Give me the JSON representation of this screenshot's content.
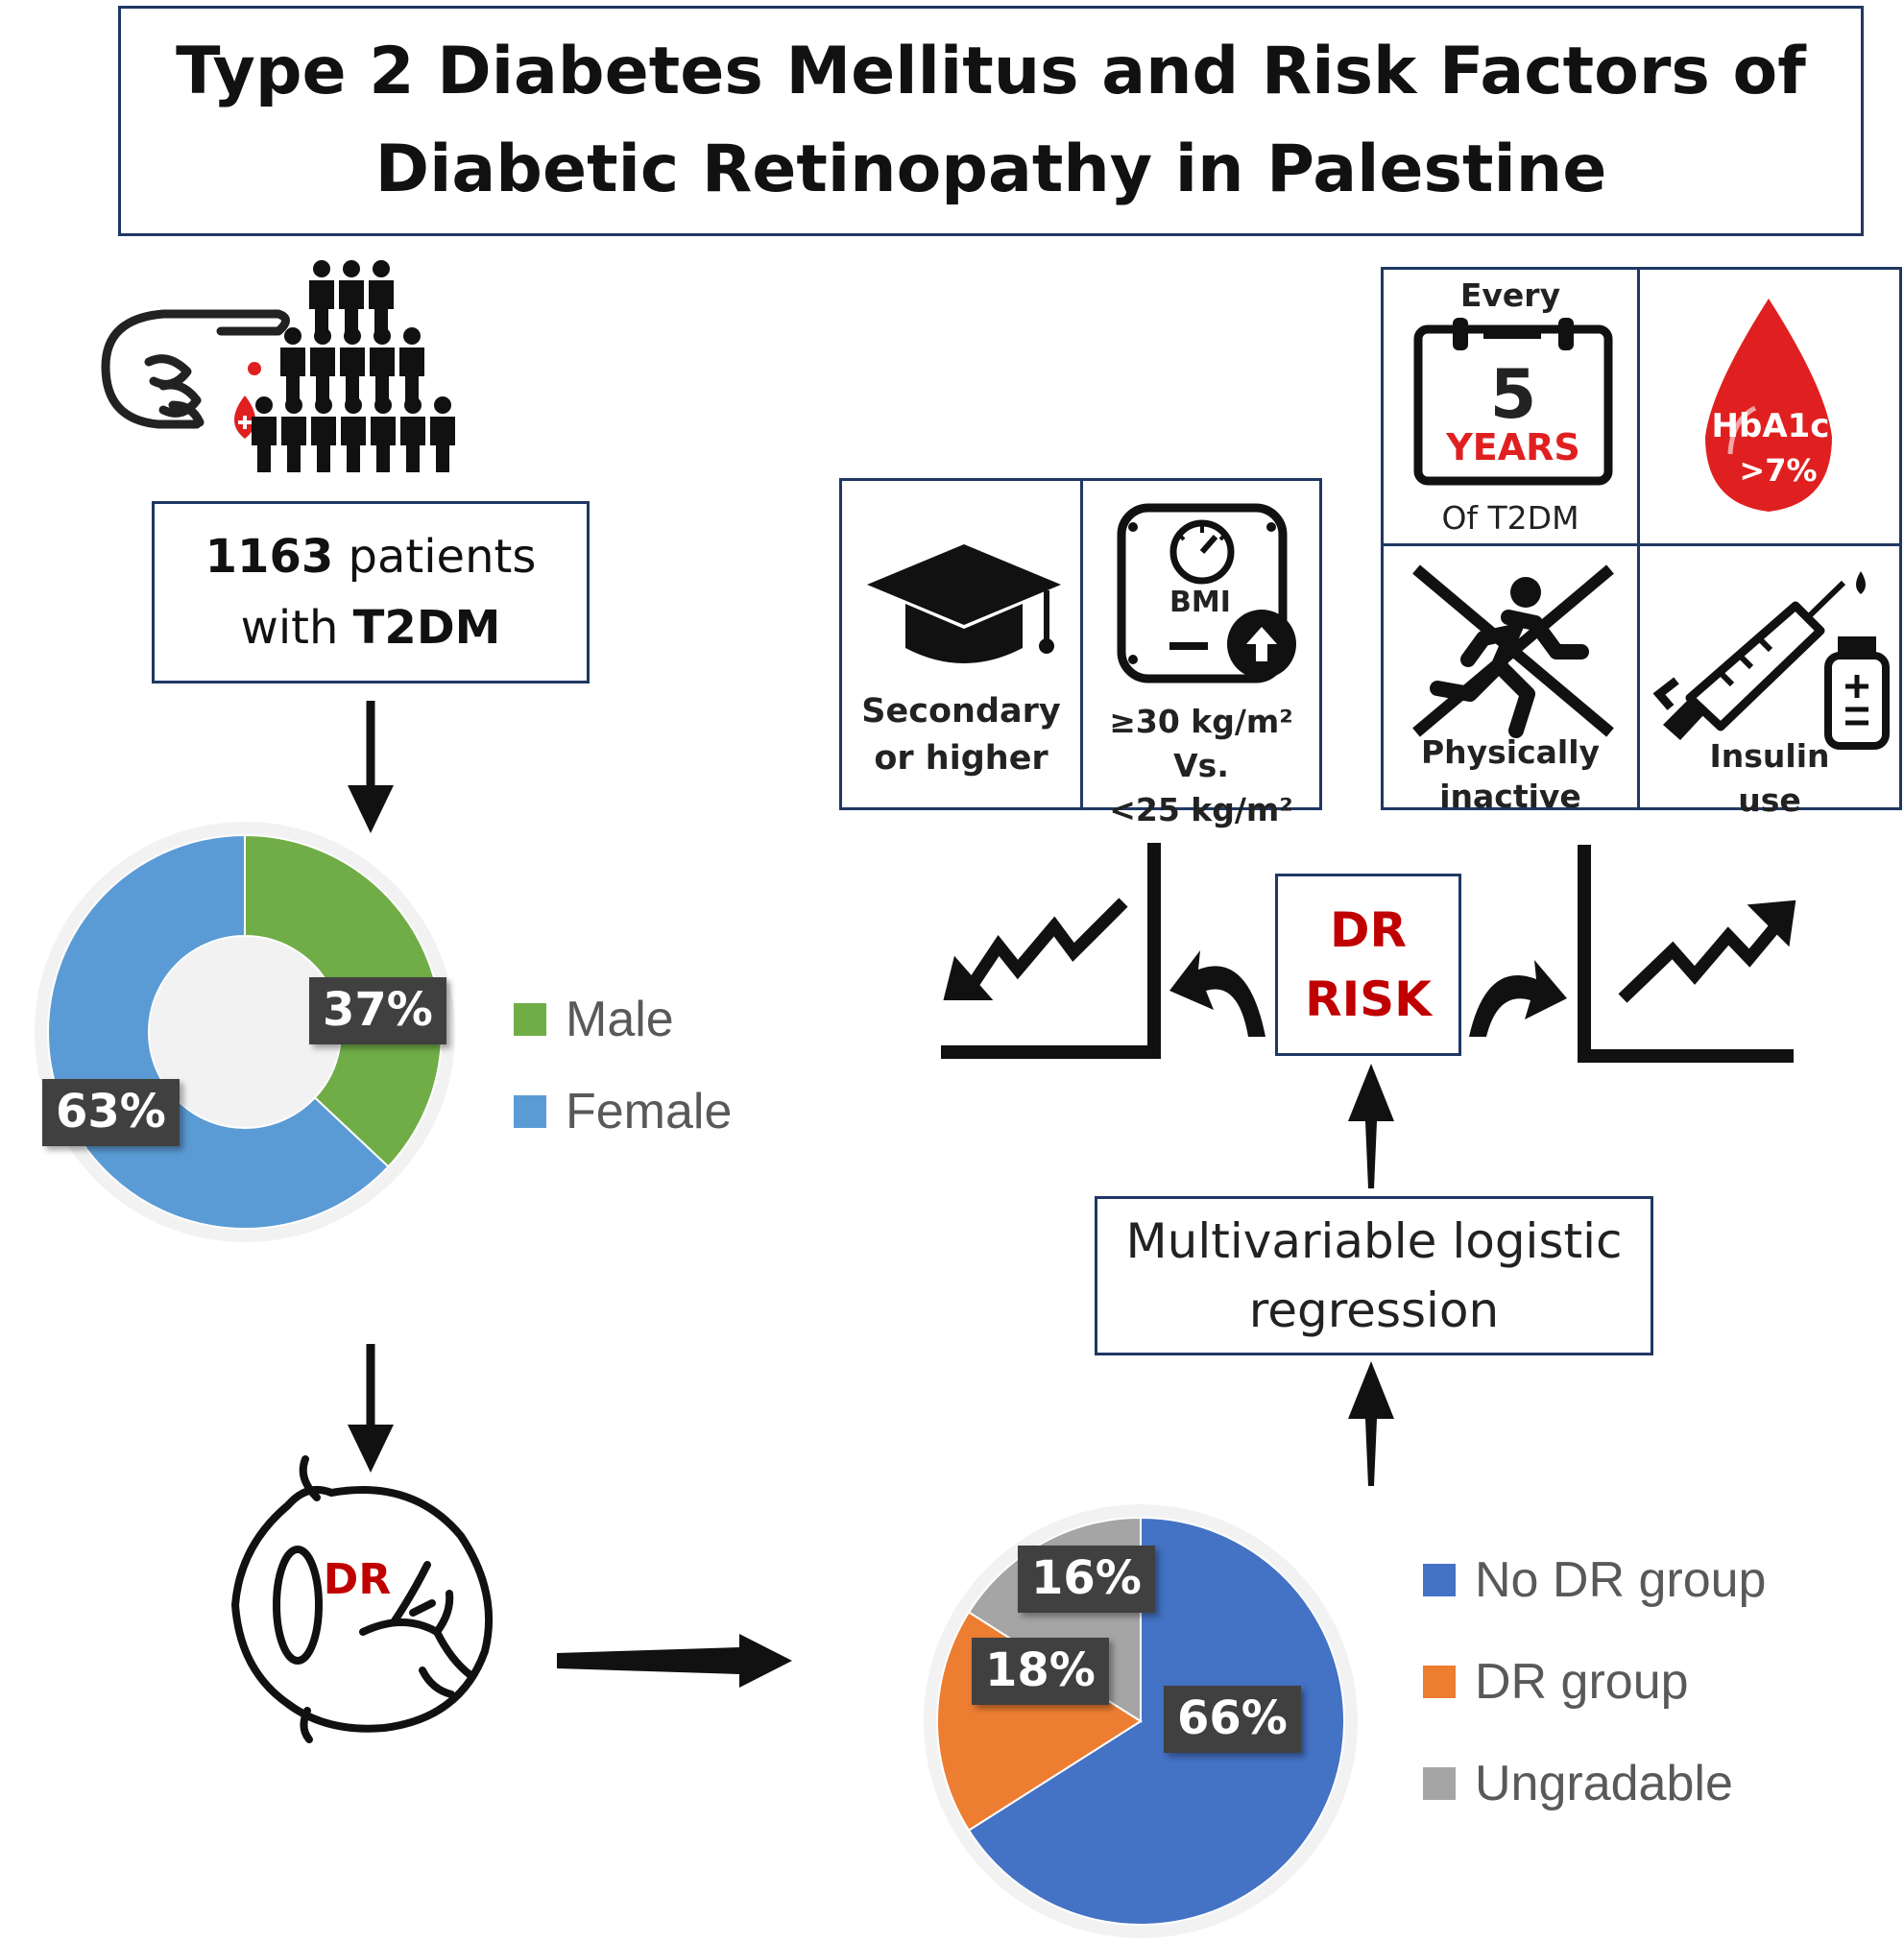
{
  "title": {
    "line1": "Type 2 Diabetes Mellitus and Risk Factors of",
    "line2": "Diabetic Retinopathy in Palestine"
  },
  "patients": {
    "count": "1163",
    "text1": " patients",
    "text2": "with ",
    "condition": "T2DM"
  },
  "gender_chart": {
    "type": "pie",
    "categories": [
      "Male",
      "Female"
    ],
    "values": [
      37,
      63
    ],
    "labels": [
      "37%",
      "63%"
    ],
    "colors": [
      "#70ad47",
      "#5b9bd5"
    ],
    "legend": "right"
  },
  "eye_label": "DR",
  "dr_chart": {
    "type": "pie",
    "categories": [
      "No DR group",
      "DR group",
      "Ungradable"
    ],
    "values": [
      66,
      18,
      16
    ],
    "labels": [
      "66%",
      "18%",
      "16%"
    ],
    "colors": [
      "#4472c4",
      "#ed7d31",
      "#a5a5a5"
    ],
    "legend": "right"
  },
  "risk_factors": {
    "education": {
      "line1": "Secondary",
      "line2": "or higher"
    },
    "bmi": {
      "icon_text": "BMI",
      "line1": "≥30 kg/m² Vs.",
      "line2": "<25 kg/m²"
    },
    "duration": {
      "top": "Every",
      "number": "5",
      "unit": "YEARS",
      "bottom": "Of T2DM"
    },
    "hba1c": {
      "line1": "HbA1c",
      "line2": ">7%"
    },
    "activity": {
      "line1": "Physically",
      "line2": "inactive"
    },
    "insulin": {
      "line1": "Insulin",
      "line2": "use"
    }
  },
  "dr_risk": {
    "line1": "DR",
    "line2": "RISK"
  },
  "regression": {
    "line1": "Multivariable logistic",
    "line2": "regression"
  },
  "colors": {
    "border": "#1f3864",
    "accent_red": "#c00000",
    "blood_red": "#e02020"
  }
}
